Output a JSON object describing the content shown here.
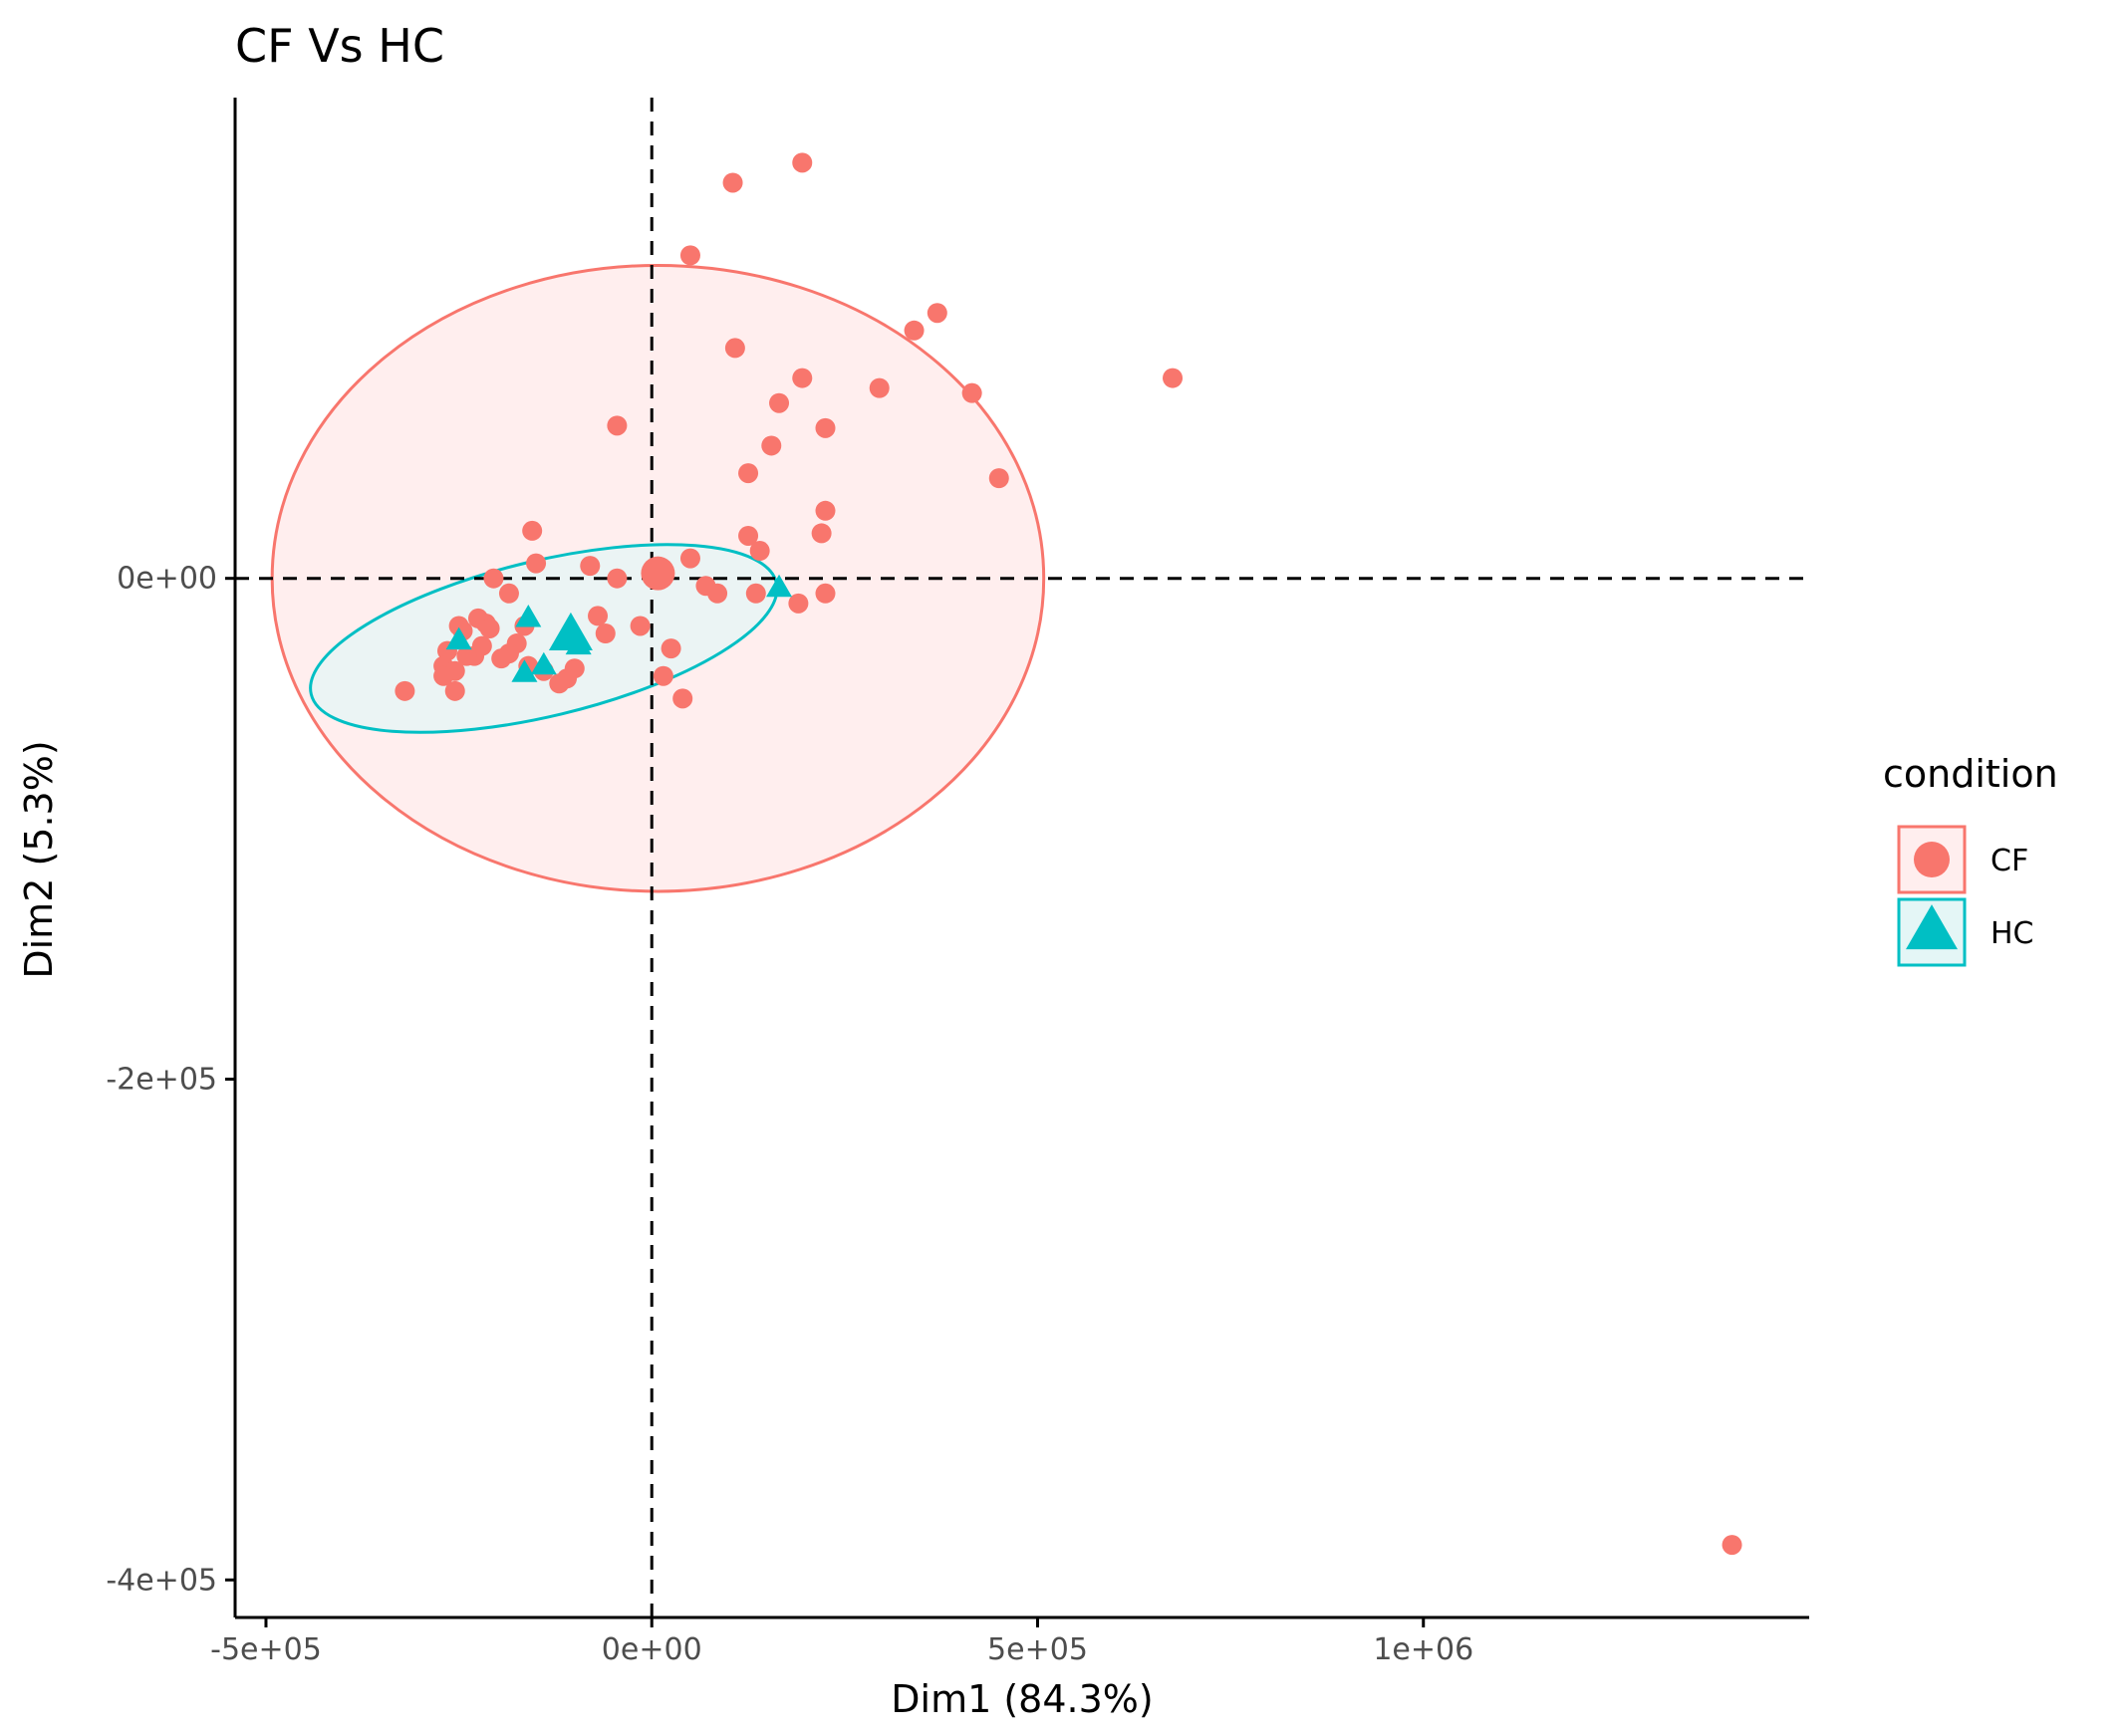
{
  "chart_data": {
    "type": "scatter",
    "title": "CF Vs HC",
    "xlabel": "Dim1 (84.3%)",
    "ylabel": "Dim2 (5.3%)",
    "xlim": [
      -540000,
      1500000
    ],
    "ylim": [
      -415000,
      192000
    ],
    "x_ticks": [
      {
        "value": -500000,
        "label": "-5e+05"
      },
      {
        "value": 0,
        "label": "0e+00"
      },
      {
        "value": 500000,
        "label": "5e+05"
      },
      {
        "value": 1000000,
        "label": "1e+06"
      }
    ],
    "y_ticks": [
      {
        "value": 0,
        "label": "0e+00"
      },
      {
        "value": -200000,
        "label": "-2e+05"
      },
      {
        "value": -400000,
        "label": "-4e+05"
      }
    ],
    "reference_lines": {
      "x": 0,
      "y": 0,
      "style": "dashed"
    },
    "grid": false,
    "legend": {
      "title": "condition",
      "position": "right"
    },
    "series": [
      {
        "name": "CF",
        "marker": "circle",
        "color": "#F8766D",
        "fill": "#FFEEEE",
        "centroid": [
          8000,
          2000
        ],
        "ellipse": {
          "center": [
            8000,
            0
          ],
          "rx": 500000,
          "ry": 125000,
          "angle_deg": 0
        },
        "points": [
          [
            195000,
            166000
          ],
          [
            105000,
            158000
          ],
          [
            50000,
            129000
          ],
          [
            370000,
            106000
          ],
          [
            340000,
            99000
          ],
          [
            108000,
            92000
          ],
          [
            195000,
            80000
          ],
          [
            675000,
            80000
          ],
          [
            295000,
            76000
          ],
          [
            415000,
            74000
          ],
          [
            165000,
            70000
          ],
          [
            -45000,
            61000
          ],
          [
            225000,
            60000
          ],
          [
            155000,
            53000
          ],
          [
            125000,
            42000
          ],
          [
            450000,
            40000
          ],
          [
            225000,
            27000
          ],
          [
            -155000,
            19000
          ],
          [
            220000,
            18000
          ],
          [
            125000,
            17000
          ],
          [
            140000,
            11000
          ],
          [
            50000,
            8000
          ],
          [
            -150000,
            6000
          ],
          [
            -80000,
            5000
          ],
          [
            -205000,
            0
          ],
          [
            -45000,
            0
          ],
          [
            70000,
            -3000
          ],
          [
            85000,
            -6000
          ],
          [
            135000,
            -6000
          ],
          [
            225000,
            -6000
          ],
          [
            -185000,
            -6000
          ],
          [
            190000,
            -10000
          ],
          [
            -70000,
            -15000
          ],
          [
            -225000,
            -16000
          ],
          [
            -215000,
            -18000
          ],
          [
            -250000,
            -19000
          ],
          [
            -165000,
            -19000
          ],
          [
            -15000,
            -19000
          ],
          [
            -245000,
            -21000
          ],
          [
            -60000,
            -22000
          ],
          [
            -210000,
            -20000
          ],
          [
            -175000,
            -26000
          ],
          [
            -220000,
            -27000
          ],
          [
            -265000,
            -29000
          ],
          [
            -185000,
            -30000
          ],
          [
            -230000,
            -31000
          ],
          [
            -240000,
            -31000
          ],
          [
            -270000,
            -35000
          ],
          [
            -255000,
            -37000
          ],
          [
            -160000,
            -35000
          ],
          [
            -100000,
            -36000
          ],
          [
            -195000,
            -32000
          ],
          [
            25000,
            -28000
          ],
          [
            -270000,
            -39000
          ],
          [
            -140000,
            -37000
          ],
          [
            -110000,
            -40000
          ],
          [
            15000,
            -39000
          ],
          [
            -320000,
            -45000
          ],
          [
            -255000,
            -45000
          ],
          [
            -120000,
            -42000
          ],
          [
            40000,
            -48000
          ],
          [
            1400000,
            -386000
          ]
        ]
      },
      {
        "name": "HC",
        "marker": "triangle",
        "color": "#00BFC4",
        "fill": "#E4F6F6",
        "centroid": [
          -105000,
          -23000
        ],
        "ellipse": {
          "center": [
            -140000,
            -24000
          ],
          "rx": 310000,
          "ry": 31000,
          "angle_deg": 13.5
        },
        "points": [
          [
            -160000,
            -16000
          ],
          [
            -250000,
            -25000
          ],
          [
            -95000,
            -27000
          ],
          [
            -165000,
            -38000
          ],
          [
            -140000,
            -35000
          ],
          [
            165000,
            -4000
          ]
        ]
      }
    ]
  }
}
